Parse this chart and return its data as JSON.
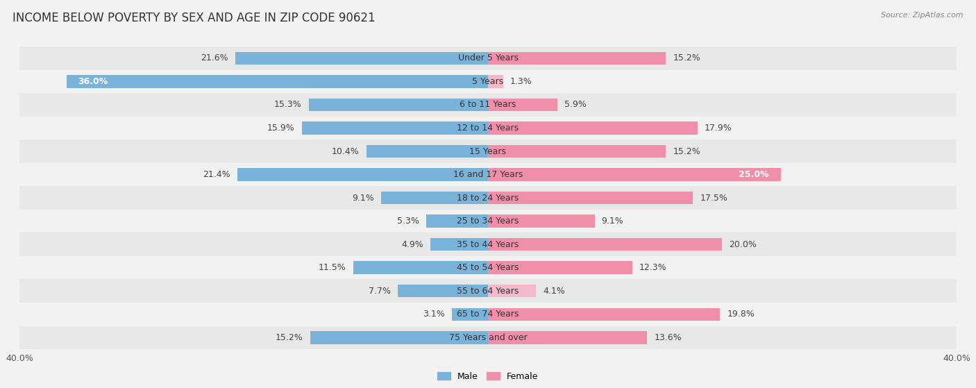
{
  "title": "INCOME BELOW POVERTY BY SEX AND AGE IN ZIP CODE 90621",
  "source": "Source: ZipAtlas.com",
  "categories": [
    "Under 5 Years",
    "5 Years",
    "6 to 11 Years",
    "12 to 14 Years",
    "15 Years",
    "16 and 17 Years",
    "18 to 24 Years",
    "25 to 34 Years",
    "35 to 44 Years",
    "45 to 54 Years",
    "55 to 64 Years",
    "65 to 74 Years",
    "75 Years and over"
  ],
  "male": [
    21.6,
    36.0,
    15.3,
    15.9,
    10.4,
    21.4,
    9.1,
    5.3,
    4.9,
    11.5,
    7.7,
    3.1,
    15.2
  ],
  "female": [
    15.2,
    1.3,
    5.9,
    17.9,
    15.2,
    25.0,
    17.5,
    9.1,
    20.0,
    12.3,
    4.1,
    19.8,
    13.6
  ],
  "male_color": "#7ab3d9",
  "female_color": "#f08faa",
  "female_light_color": "#f5b8c8",
  "male_label_color": "#444444",
  "female_label_color": "#444444",
  "male_label_inside_color": "#ffffff",
  "female_label_inside_color": "#ffffff",
  "axis_limit": 40.0,
  "bar_height": 0.55,
  "background_color": "#f2f2f2",
  "row_even_color": "#e8e8e8",
  "row_odd_color": "#f2f2f2",
  "title_fontsize": 12,
  "label_fontsize": 9,
  "category_fontsize": 9,
  "axis_label_fontsize": 9,
  "inside_label_threshold_male": 30.0,
  "inside_label_threshold_female": 22.0
}
